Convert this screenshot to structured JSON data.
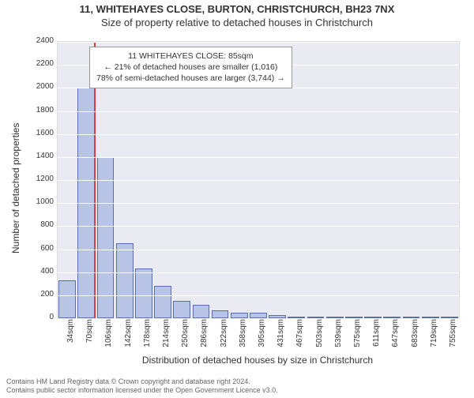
{
  "titles": {
    "address": "11, WHITEHAYES CLOSE, BURTON, CHRISTCHURCH, BH23 7NX",
    "subtitle": "Size of property relative to detached houses in Christchurch"
  },
  "chart": {
    "type": "bar",
    "background_color": "#eaeaf2",
    "grid_color": "#ffffff",
    "bar_fill": "#b7c4e6",
    "bar_border": "#5a6ea8",
    "ref_line_color": "#e03a3a",
    "ylim": [
      0,
      2400
    ],
    "ytick_step": 200,
    "ylabel": "Number of detached properties",
    "xlabel": "Distribution of detached houses by size in Christchurch",
    "x_categories": [
      "34sqm",
      "70sqm",
      "106sqm",
      "142sqm",
      "178sqm",
      "214sqm",
      "250sqm",
      "286sqm",
      "322sqm",
      "358sqm",
      "395sqm",
      "431sqm",
      "467sqm",
      "503sqm",
      "539sqm",
      "575sqm",
      "611sqm",
      "647sqm",
      "683sqm",
      "719sqm",
      "755sqm"
    ],
    "bars": [
      330,
      2000,
      1400,
      650,
      430,
      280,
      150,
      120,
      70,
      50,
      45,
      30,
      15,
      12,
      12,
      8,
      6,
      6,
      4,
      4,
      2
    ],
    "ref_line_x_index": 1.42,
    "label_fontsize": 12,
    "tick_fontsize": 10
  },
  "info_box": {
    "line1": "11 WHITEHAYES CLOSE: 85sqm",
    "line2": "← 21% of detached houses are smaller (1,016)",
    "line3": "78% of semi-detached houses are larger (3,744) →"
  },
  "footer": {
    "line1": "Contains HM Land Registry data © Crown copyright and database right 2024.",
    "line2": "Contains public sector information licensed under the Open Government Licence v3.0."
  }
}
